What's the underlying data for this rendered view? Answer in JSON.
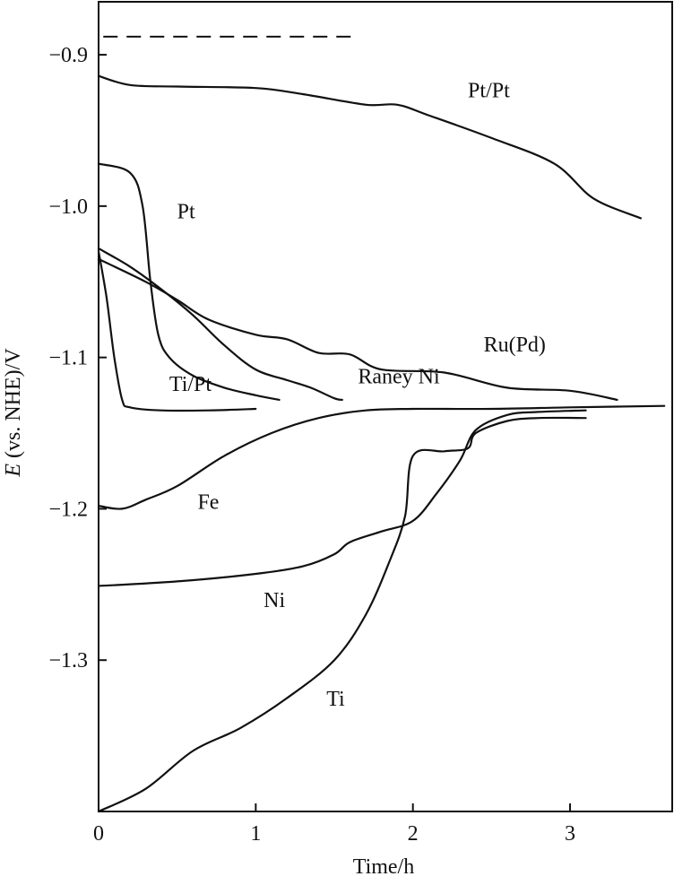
{
  "chart_data": {
    "type": "line",
    "xlabel": "Time/h",
    "ylabel_italic": "E",
    "ylabel_rest": " (vs. NHE)/V",
    "xlim": [
      0,
      3.65
    ],
    "ylim": [
      -1.4,
      -0.865
    ],
    "x_ticks": [
      {
        "value": 0,
        "label": "0"
      },
      {
        "value": 1,
        "label": "1"
      },
      {
        "value": 2,
        "label": "2"
      },
      {
        "value": 3,
        "label": "3"
      }
    ],
    "y_ticks": [
      {
        "value": -0.9,
        "label": "−0.9"
      },
      {
        "value": -1.0,
        "label": "−1.0"
      },
      {
        "value": -1.1,
        "label": "−1.1"
      },
      {
        "value": -1.2,
        "label": "−1.2"
      },
      {
        "value": -1.3,
        "label": "−1.3"
      }
    ],
    "reference_line": {
      "y": -0.888,
      "x": [
        0.03,
        1.65
      ],
      "style": "dashed"
    },
    "series": [
      {
        "name": "Pt/Pt",
        "label_at": [
          2.35,
          -0.928
        ],
        "x": [
          0,
          0.2,
          0.5,
          1.0,
          1.3,
          1.7,
          1.9,
          2.1,
          2.5,
          2.9,
          3.15,
          3.45
        ],
        "y": [
          -0.914,
          -0.92,
          -0.921,
          -0.922,
          -0.926,
          -0.933,
          -0.933,
          -0.94,
          -0.955,
          -0.972,
          -0.995,
          -1.008
        ]
      },
      {
        "name": "Pt",
        "label_at": [
          0.5,
          -1.008
        ],
        "x": [
          0,
          0.2,
          0.28,
          0.33,
          0.38,
          0.45,
          0.6,
          0.8,
          1.0,
          1.15
        ],
        "y": [
          -0.972,
          -0.978,
          -1.0,
          -1.05,
          -1.085,
          -1.1,
          -1.112,
          -1.12,
          -1.125,
          -1.128
        ]
      },
      {
        "name": "Ti/Pt",
        "label_at": [
          0.45,
          -1.122
        ],
        "x": [
          0,
          0.05,
          0.1,
          0.15,
          0.2,
          0.4,
          0.7,
          1.0
        ],
        "y": [
          -1.03,
          -1.06,
          -1.1,
          -1.128,
          -1.133,
          -1.135,
          -1.135,
          -1.134
        ]
      },
      {
        "name": "Raney Ni",
        "label_at": [
          1.65,
          -1.117
        ],
        "x": [
          0,
          0.2,
          0.4,
          0.6,
          0.8,
          1.0,
          1.2,
          1.35,
          1.5,
          1.55
        ],
        "y": [
          -1.028,
          -1.04,
          -1.055,
          -1.072,
          -1.092,
          -1.108,
          -1.115,
          -1.12,
          -1.127,
          -1.128
        ]
      },
      {
        "name": "Ru(Pd)",
        "label_at": [
          2.45,
          -1.096
        ],
        "x": [
          0,
          0.3,
          0.5,
          0.7,
          1.0,
          1.2,
          1.4,
          1.6,
          1.8,
          2.2,
          2.6,
          3.0,
          3.3
        ],
        "y": [
          -1.035,
          -1.05,
          -1.062,
          -1.075,
          -1.085,
          -1.088,
          -1.097,
          -1.098,
          -1.108,
          -1.11,
          -1.12,
          -1.122,
          -1.128
        ]
      },
      {
        "name": "Fe",
        "label_at": [
          0.63,
          -1.2
        ],
        "x": [
          0,
          0.15,
          0.3,
          0.5,
          0.8,
          1.1,
          1.4,
          1.7,
          2.0,
          2.5,
          3.0,
          3.6
        ],
        "y": [
          -1.198,
          -1.2,
          -1.194,
          -1.185,
          -1.165,
          -1.15,
          -1.14,
          -1.135,
          -1.134,
          -1.134,
          -1.133,
          -1.132
        ]
      },
      {
        "name": "Ni",
        "label_at": [
          1.05,
          -1.265
        ],
        "x": [
          0,
          0.5,
          1.0,
          1.3,
          1.5,
          1.6,
          1.8,
          2.0,
          2.15,
          2.3,
          2.4,
          2.6,
          2.8,
          3.1
        ],
        "y": [
          -1.251,
          -1.248,
          -1.243,
          -1.238,
          -1.23,
          -1.222,
          -1.215,
          -1.208,
          -1.19,
          -1.168,
          -1.148,
          -1.138,
          -1.136,
          -1.135
        ]
      },
      {
        "name": "Ti",
        "label_at": [
          1.45,
          -1.33
        ],
        "x": [
          0,
          0.3,
          0.6,
          0.9,
          1.2,
          1.5,
          1.7,
          1.85,
          1.95,
          2.0,
          2.2,
          2.35,
          2.4,
          2.6,
          2.8,
          3.1
        ],
        "y": [
          -1.4,
          -1.385,
          -1.36,
          -1.345,
          -1.325,
          -1.3,
          -1.27,
          -1.235,
          -1.205,
          -1.165,
          -1.162,
          -1.16,
          -1.15,
          -1.142,
          -1.14,
          -1.14
        ]
      }
    ]
  }
}
